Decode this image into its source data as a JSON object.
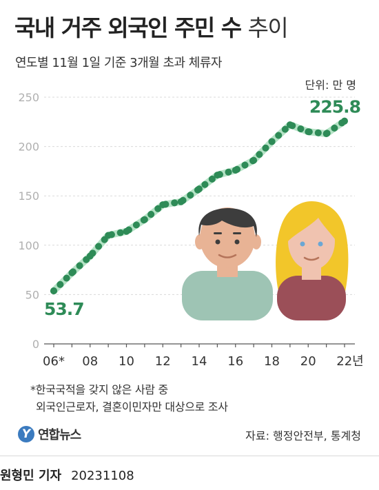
{
  "header": {
    "title_bold": "국내 거주 외국인 주민 수",
    "title_light": "추이",
    "subtitle": "연도별 11월 1일 기준 3개월 초과 체류자",
    "unit": "단위: 만 명"
  },
  "chart_data": {
    "type": "line",
    "title": "국내 거주 외국인 주민 수 추이",
    "subtitle": "연도별 11월 1일 기준 3개월 초과 체류자",
    "unit": "단위: 만 명",
    "x": [
      "06",
      "07",
      "08",
      "09",
      "10",
      "11",
      "12",
      "13",
      "14",
      "15",
      "16",
      "17",
      "18",
      "19",
      "20",
      "21",
      "22"
    ],
    "x_tick_labels": [
      "06*",
      "08",
      "10",
      "12",
      "14",
      "16",
      "18",
      "20",
      "22년"
    ],
    "y_ticks": [
      "0",
      "50",
      "100",
      "150",
      "200",
      "250"
    ],
    "ylim": [
      0,
      250
    ],
    "series": [
      {
        "values": [
          53.7,
          72,
          89,
          110,
          114,
          126,
          141,
          144,
          157,
          171,
          176,
          186,
          205,
          222,
          215,
          213,
          225.8
        ],
        "color": "#2e8b57"
      }
    ],
    "annotations": [
      {
        "label": "53.7",
        "index": 0
      },
      {
        "label": "225.8",
        "index": 16
      }
    ],
    "grid": true,
    "line_color": "#2e8b57",
    "halo_color": "#b5e3c6"
  },
  "illustration": {
    "man_skin": "#e8b395",
    "man_hair": "#3d3d3d",
    "man_shirt": "#9ec4b4",
    "woman_hair": "#f2c62a",
    "woman_shirt": "#9b4f58",
    "icons": [
      "man-icon",
      "woman-icon"
    ]
  },
  "footer": {
    "note_line1": "*한국국적을 갖지 않은 사람 중",
    "note_line2": "외국인근로자, 결혼이민자만 대상으로 조사",
    "logo_mark": "Y",
    "logo_text": "연합뉴스",
    "source": "자료: 행정안전부, 통계청",
    "reporter": "원형민 기자",
    "date": "20231108"
  }
}
